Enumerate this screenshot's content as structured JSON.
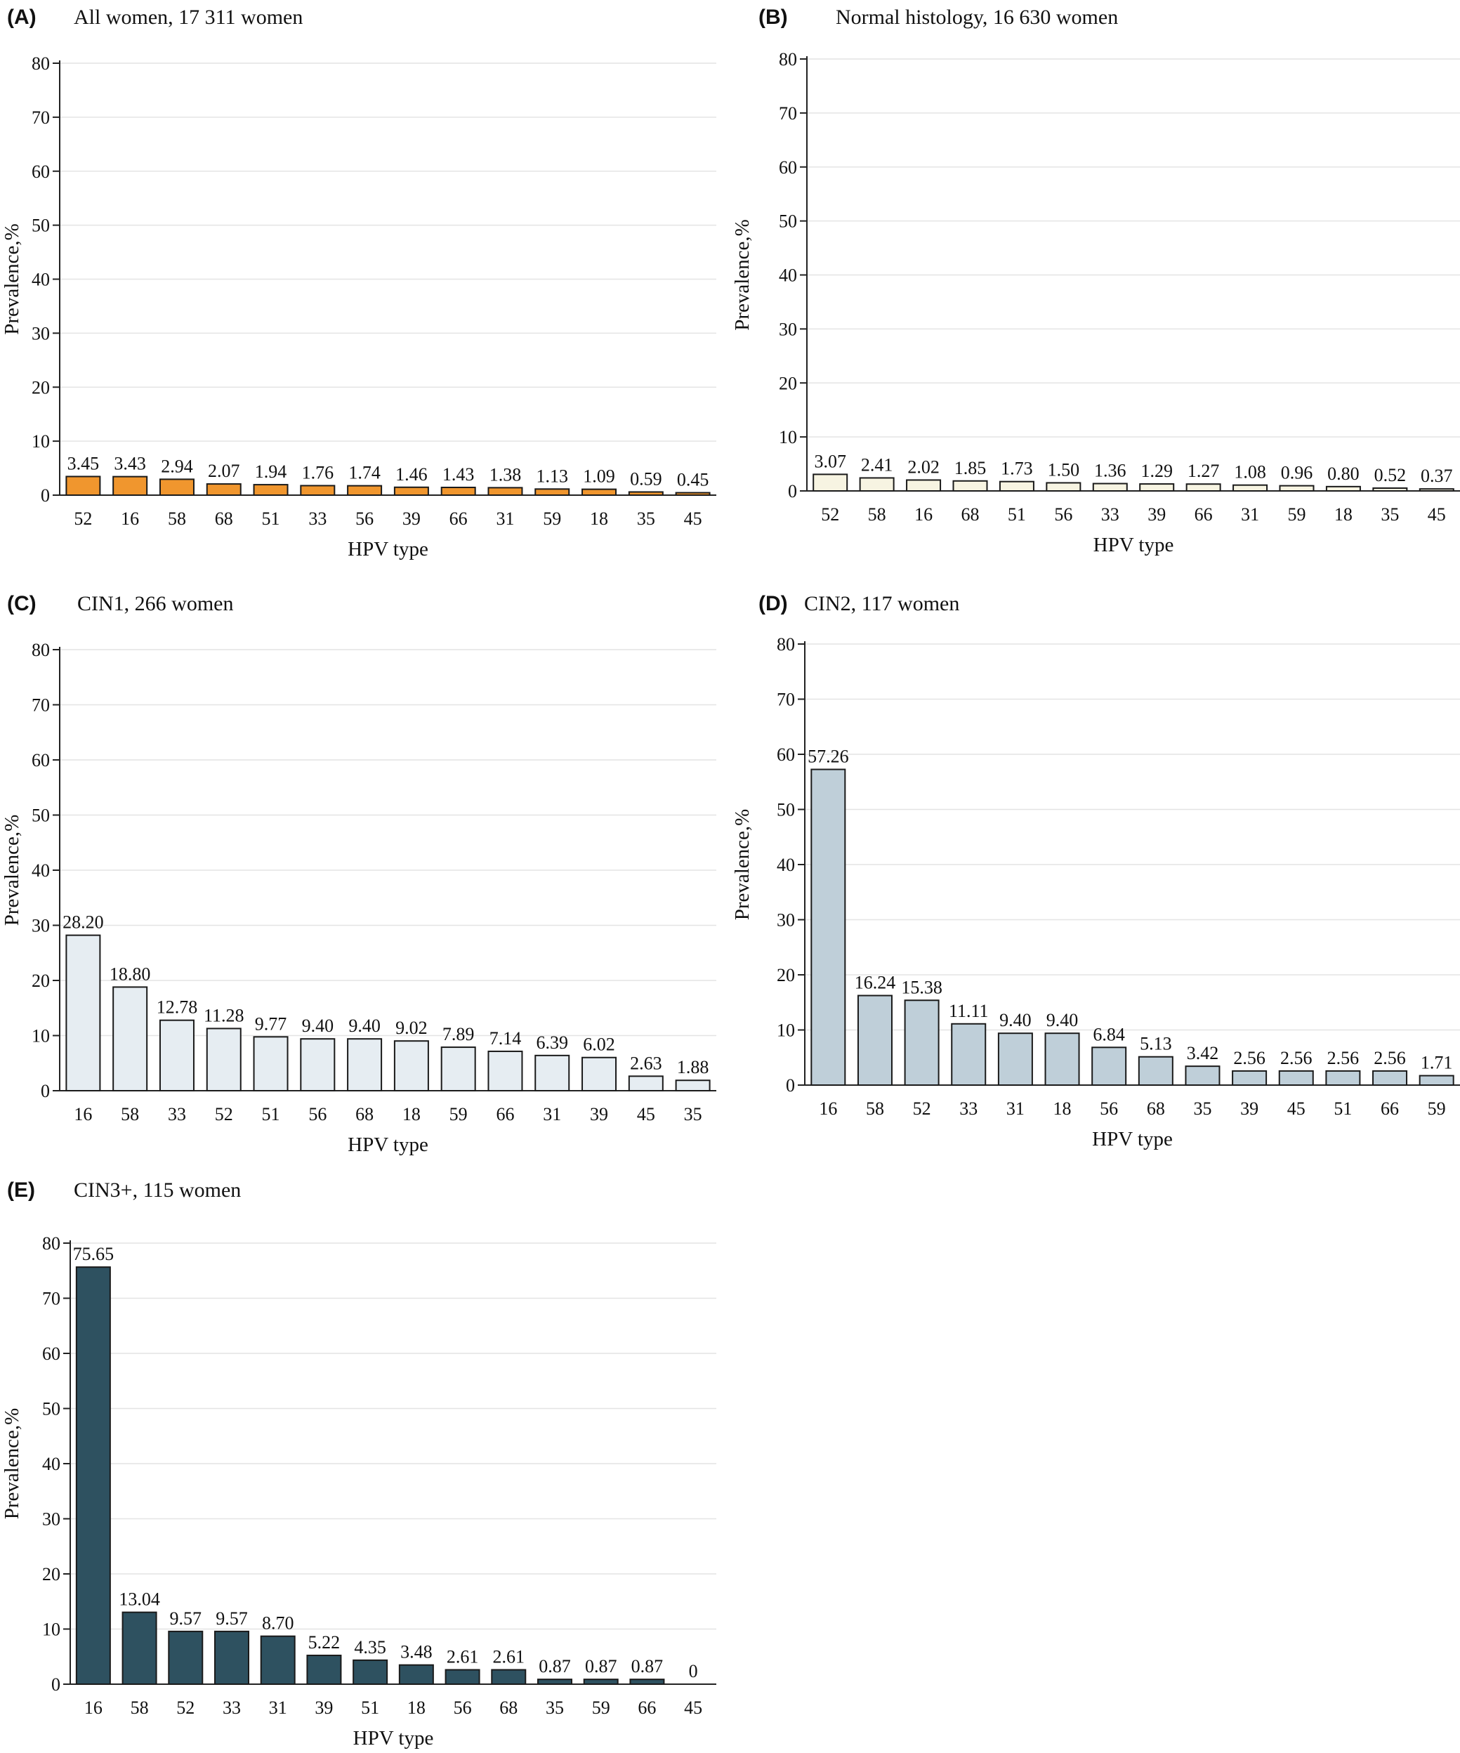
{
  "chart_data": [
    {
      "type": "bar",
      "panel_label": "(A)",
      "title": "All women, 17 311 women",
      "xlabel": "HPV type",
      "ylabel": "Prevalence,%",
      "ylim": [
        0,
        80
      ],
      "yticks": [
        0,
        10,
        20,
        30,
        40,
        50,
        60,
        70,
        80
      ],
      "grid": true,
      "color": "#F0962E",
      "categories": [
        "52",
        "16",
        "58",
        "68",
        "51",
        "33",
        "56",
        "39",
        "66",
        "31",
        "59",
        "18",
        "35",
        "45"
      ],
      "values": [
        3.45,
        3.43,
        2.94,
        2.07,
        1.94,
        1.76,
        1.74,
        1.46,
        1.43,
        1.38,
        1.13,
        1.09,
        0.59,
        0.45
      ],
      "value_labels": [
        "3.45",
        "3.43",
        "2.94",
        "2.07",
        "1.94",
        "1.76",
        "1.74",
        "1.46",
        "1.43",
        "1.38",
        "1.13",
        "1.09",
        "0.59",
        "0.45"
      ]
    },
    {
      "type": "bar",
      "panel_label": "(B)",
      "title": "Normal histology, 16 630 women",
      "xlabel": "HPV type",
      "ylabel": "Prevalence,%",
      "ylim": [
        0,
        80
      ],
      "yticks": [
        0,
        10,
        20,
        30,
        40,
        50,
        60,
        70,
        80
      ],
      "grid": true,
      "color": "#F7F4E2",
      "categories": [
        "52",
        "58",
        "16",
        "68",
        "51",
        "56",
        "33",
        "39",
        "66",
        "31",
        "59",
        "18",
        "35",
        "45"
      ],
      "values": [
        3.07,
        2.41,
        2.02,
        1.85,
        1.73,
        1.5,
        1.36,
        1.29,
        1.27,
        1.08,
        0.96,
        0.8,
        0.52,
        0.37
      ],
      "value_labels": [
        "3.07",
        "2.41",
        "2.02",
        "1.85",
        "1.73",
        "1.50",
        "1.36",
        "1.29",
        "1.27",
        "1.08",
        "0.96",
        "0.80",
        "0.52",
        "0.37"
      ]
    },
    {
      "type": "bar",
      "panel_label": "(C)",
      "title": "CIN1, 266 women",
      "xlabel": "HPV type",
      "ylabel": "Prevalence,%",
      "ylim": [
        0,
        80
      ],
      "yticks": [
        0,
        10,
        20,
        30,
        40,
        50,
        60,
        70,
        80
      ],
      "grid": true,
      "color": "#E6EDF2",
      "categories": [
        "16",
        "58",
        "33",
        "52",
        "51",
        "56",
        "68",
        "18",
        "59",
        "66",
        "31",
        "39",
        "45",
        "35"
      ],
      "values": [
        28.2,
        18.8,
        12.78,
        11.28,
        9.77,
        9.4,
        9.4,
        9.02,
        7.89,
        7.14,
        6.39,
        6.02,
        2.63,
        1.88
      ],
      "value_labels": [
        "28.20",
        "18.80",
        "12.78",
        "11.28",
        "9.77",
        "9.40",
        "9.40",
        "9.02",
        "7.89",
        "7.14",
        "6.39",
        "6.02",
        "2.63",
        "1.88"
      ]
    },
    {
      "type": "bar",
      "panel_label": "(D)",
      "title": "CIN2, 117 women",
      "xlabel": "HPV type",
      "ylabel": "Prevalence,%",
      "ylim": [
        0,
        80
      ],
      "yticks": [
        0,
        10,
        20,
        30,
        40,
        50,
        60,
        70,
        80
      ],
      "grid": true,
      "color": "#BFCFD9",
      "categories": [
        "16",
        "58",
        "52",
        "33",
        "31",
        "18",
        "56",
        "68",
        "35",
        "39",
        "45",
        "51",
        "66",
        "59"
      ],
      "values": [
        57.26,
        16.24,
        15.38,
        11.11,
        9.4,
        9.4,
        6.84,
        5.13,
        3.42,
        2.56,
        2.56,
        2.56,
        2.56,
        1.71
      ],
      "value_labels": [
        "57.26",
        "16.24",
        "15.38",
        "11.11",
        "9.40",
        "9.40",
        "6.84",
        "5.13",
        "3.42",
        "2.56",
        "2.56",
        "2.56",
        "2.56",
        "1.71"
      ]
    },
    {
      "type": "bar",
      "panel_label": "(E)",
      "title": "CIN3+, 115 women",
      "xlabel": "HPV type",
      "ylabel": "Prevalence,%",
      "ylim": [
        0,
        80
      ],
      "yticks": [
        0,
        10,
        20,
        30,
        40,
        50,
        60,
        70,
        80
      ],
      "grid": true,
      "color": "#2E5160",
      "categories": [
        "16",
        "58",
        "52",
        "33",
        "31",
        "39",
        "51",
        "18",
        "56",
        "68",
        "35",
        "59",
        "66",
        "45"
      ],
      "values": [
        75.65,
        13.04,
        9.57,
        9.57,
        8.7,
        5.22,
        4.35,
        3.48,
        2.61,
        2.61,
        0.87,
        0.87,
        0.87,
        0
      ],
      "value_labels": [
        "75.65",
        "13.04",
        "9.57",
        "9.57",
        "8.70",
        "5.22",
        "4.35",
        "3.48",
        "2.61",
        "2.61",
        "0.87",
        "0.87",
        "0.87",
        "0"
      ]
    }
  ]
}
